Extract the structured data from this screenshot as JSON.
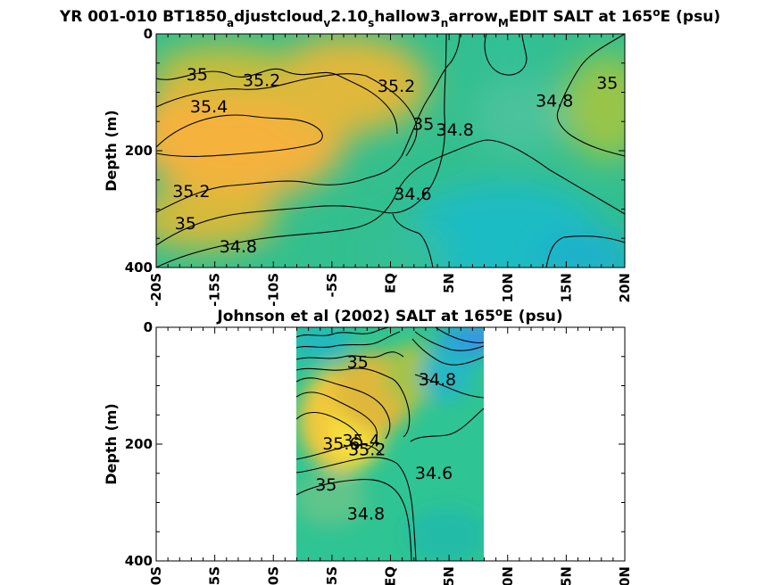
{
  "chart_data": [
    {
      "type": "contour",
      "title_parts": [
        "YR 001-010 BT1850",
        "a",
        "djustcloud",
        "v",
        "2.10",
        "s",
        "hallow3",
        "n",
        "arrow",
        "M",
        "EDIT SALT at 165",
        "o",
        "E (psu)"
      ],
      "ylabel": "Depth (m)",
      "yticks": [
        "0",
        "200",
        "400"
      ],
      "xticks": [
        "-20S",
        "-15S",
        "-10S",
        "-5S",
        "EQ",
        "5N",
        "10N",
        "15N",
        "20N"
      ],
      "ylim": [
        0,
        400
      ],
      "xlim": [
        -20,
        20
      ],
      "contour_labels": [
        {
          "text": "35",
          "lat": -16.5,
          "depth": 70
        },
        {
          "text": "35.2",
          "lat": -11,
          "depth": 80
        },
        {
          "text": "35.4",
          "lat": -15.5,
          "depth": 125
        },
        {
          "text": "35.2",
          "lat": 0.5,
          "depth": 90
        },
        {
          "text": "35",
          "lat": 2.8,
          "depth": 155
        },
        {
          "text": "34.8",
          "lat": 5.5,
          "depth": 165
        },
        {
          "text": "34.8",
          "lat": 14,
          "depth": 115
        },
        {
          "text": "35",
          "lat": 18.5,
          "depth": 85
        },
        {
          "text": "35.2",
          "lat": -17,
          "depth": 270
        },
        {
          "text": "35",
          "lat": -17.5,
          "depth": 325
        },
        {
          "text": "34.6",
          "lat": 1.9,
          "depth": 275
        },
        {
          "text": "34.8",
          "lat": -13,
          "depth": 365
        }
      ]
    },
    {
      "type": "contour",
      "title_parts": [
        "Johnson et al (2002) SALT at 165",
        "o",
        "E (psu)"
      ],
      "ylabel": "Depth (m)",
      "yticks": [
        "0",
        "200",
        "400"
      ],
      "xticks": [
        "-20S",
        "-15S",
        "-10S",
        "-5S",
        "EQ",
        "5N",
        "10N",
        "15N",
        "20N"
      ],
      "ylim": [
        0,
        400
      ],
      "xlim": [
        -20,
        20
      ],
      "data_lat_range": [
        -8,
        8
      ],
      "contour_labels": [
        {
          "text": "35",
          "lat": -2.8,
          "depth": 60
        },
        {
          "text": "34.8",
          "lat": 4,
          "depth": 90
        },
        {
          "text": "35.6",
          "lat": -4.2,
          "depth": 200
        },
        {
          "text": "35.4",
          "lat": -2.5,
          "depth": 195
        },
        {
          "text": "35.2",
          "lat": -2,
          "depth": 210
        },
        {
          "text": "35",
          "lat": -5.5,
          "depth": 270
        },
        {
          "text": "34.6",
          "lat": 3.7,
          "depth": 250
        },
        {
          "text": "34.8",
          "lat": -2.1,
          "depth": 320
        }
      ]
    }
  ]
}
